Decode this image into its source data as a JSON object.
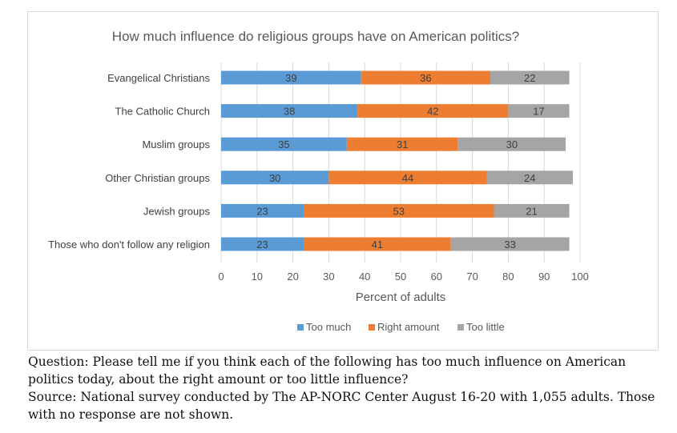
{
  "chart_data": {
    "type": "bar",
    "orientation": "horizontal",
    "stacked": true,
    "title": "How much influence do religious groups have on American politics?",
    "xlabel": "Percent of adults",
    "ylabel": "",
    "xlim": [
      0,
      100
    ],
    "x_ticks": [
      "0",
      "10",
      "20",
      "30",
      "40",
      "50",
      "60",
      "70",
      "80",
      "90",
      "100"
    ],
    "categories": [
      "Evangelical Christians",
      "The Catholic Church",
      "Muslim groups",
      "Other Christian groups",
      "Jewish groups",
      "Those who don't follow any religion"
    ],
    "series": [
      {
        "name": "Too much",
        "color": "#5b9bd5",
        "values": [
          39,
          38,
          35,
          30,
          23,
          23
        ]
      },
      {
        "name": "Right amount",
        "color": "#ed7d31",
        "values": [
          36,
          42,
          31,
          44,
          53,
          41
        ]
      },
      {
        "name": "Too little",
        "color": "#a5a5a5",
        "values": [
          22,
          17,
          30,
          24,
          21,
          33
        ]
      }
    ],
    "grid": true,
    "legend_position": "bottom"
  },
  "footnote": {
    "question": "Question: Please tell me if you think each of the following has too much influence on American politics today, about the right amount or too little influence?",
    "source": "Source: National survey conducted by The AP-NORC Center August 16-20 with 1,055 adults. Those with no response are not shown."
  }
}
